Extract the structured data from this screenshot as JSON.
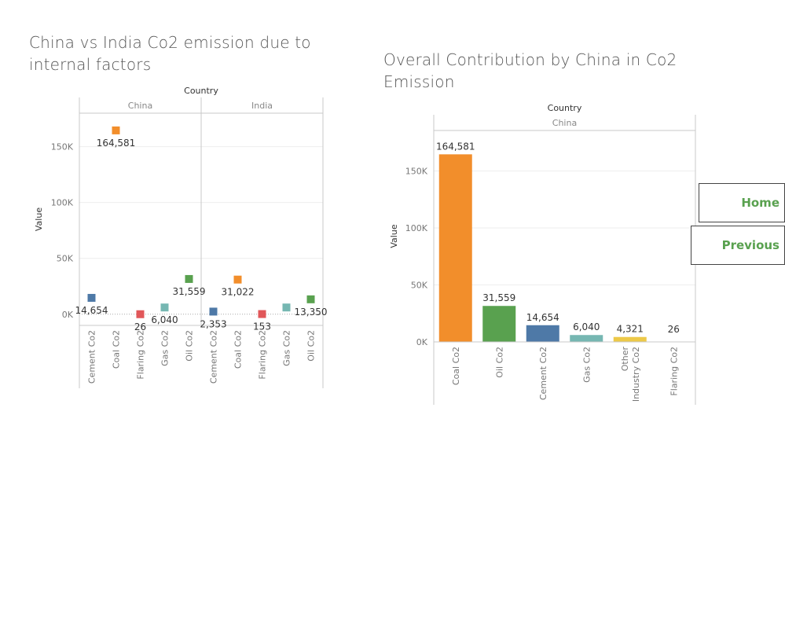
{
  "chart_data": [
    {
      "type": "scatter",
      "title": "China vs India Co2 emission due to internal factors",
      "column_header": "Country",
      "panels": [
        "China",
        "India"
      ],
      "categories": [
        "Cement Co2",
        "Coal Co2",
        "Flaring Co2",
        "Gas Co2",
        "Oil Co2"
      ],
      "series": [
        {
          "name": "China",
          "values": [
            14654,
            164581,
            26,
            6040,
            31559
          ]
        },
        {
          "name": "India",
          "values": [
            2353,
            31022,
            153,
            6040,
            13350
          ]
        }
      ],
      "value_labels": [
        [
          "14,654",
          "164,581",
          "26",
          "6,040",
          "31,559"
        ],
        [
          "2,353",
          "31,022",
          "153",
          "",
          "13,350"
        ]
      ],
      "category_colors": {
        "Cement Co2": "#4e79a7",
        "Coal Co2": "#f28e2b",
        "Flaring Co2": "#e15759",
        "Gas Co2": "#76b7b2",
        "Oil Co2": "#59a14f"
      },
      "ylabel": "Value",
      "ylim": [
        -10000,
        180000
      ],
      "yticks": [
        0,
        50000,
        100000,
        150000
      ],
      "ytick_labels": [
        "0K",
        "50K",
        "100K",
        "150K"
      ],
      "grid": true
    },
    {
      "type": "bar",
      "title": "Overall Contribution by China in Co2 Emission",
      "column_header": "Country",
      "panels": [
        "China"
      ],
      "categories": [
        "Coal Co2",
        "Oil Co2",
        "Cement Co2",
        "Gas Co2",
        "Other Industry Co2",
        "Flaring Co2"
      ],
      "values": [
        164581,
        31559,
        14654,
        6040,
        4321,
        26
      ],
      "value_labels": [
        "164,581",
        "31,559",
        "14,654",
        "6,040",
        "4,321",
        "26"
      ],
      "colors": [
        "#f28e2b",
        "#59a14f",
        "#4e79a7",
        "#76b7b2",
        "#edc948",
        "#e15759"
      ],
      "ylabel": "Value",
      "ylim": [
        0,
        180000
      ],
      "yticks": [
        0,
        50000,
        100000,
        150000
      ],
      "ytick_labels": [
        "0K",
        "50K",
        "100K",
        "150K"
      ],
      "grid": true
    }
  ],
  "nav": {
    "home_label": "Home",
    "previous_label": "Previous"
  }
}
